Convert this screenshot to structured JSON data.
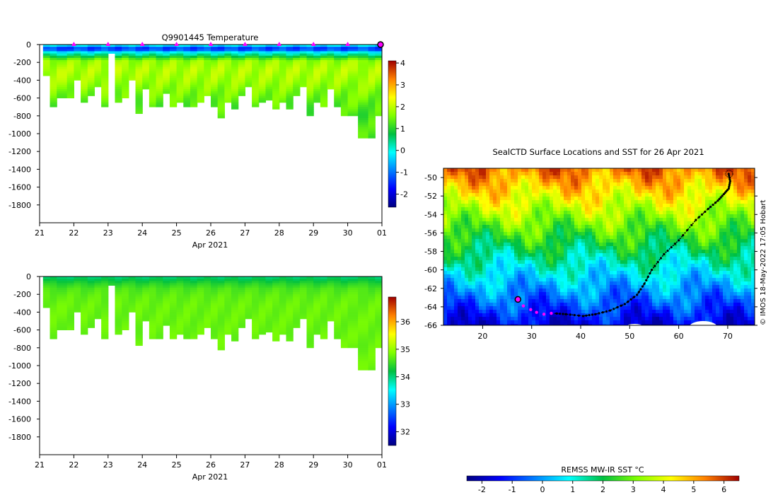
{
  "chart_data": [
    {
      "id": "temperature",
      "type": "heatmap",
      "title": "Q9901445  Temperature",
      "xlabel": "Apr 2021",
      "xticks": [
        "21",
        "22",
        "23",
        "24",
        "25",
        "26",
        "27",
        "28",
        "29",
        "30",
        "01"
      ],
      "xlim": [
        21,
        31
      ],
      "ylim": [
        -2000,
        0
      ],
      "yticks": [
        "0",
        "-200",
        "-400",
        "-600",
        "-800",
        "-1000",
        "-1200",
        "-1400",
        "-1600",
        "-1800"
      ],
      "colorbar": {
        "min": -2.6,
        "max": 4.1,
        "ticks": [
          "4",
          "3",
          "2",
          "1",
          "0",
          "-1",
          "-2"
        ]
      },
      "surface_marker_days": [
        22,
        23,
        24,
        25,
        26,
        27,
        28,
        29,
        30
      ],
      "last_profile_day": 31,
      "profile_days": [
        21.1,
        21.3,
        21.5,
        21.8,
        22.0,
        22.2,
        22.4,
        22.6,
        22.8,
        23.0,
        23.2,
        23.4,
        23.6,
        23.8,
        24.0,
        24.2,
        24.4,
        24.6,
        24.8,
        25.0,
        25.2,
        25.4,
        25.6,
        25.8,
        26.0,
        26.2,
        26.4,
        26.6,
        26.8,
        27.0,
        27.2,
        27.4,
        27.6,
        27.8,
        28.0,
        28.2,
        28.4,
        28.6,
        28.8,
        29.0,
        29.2,
        29.4,
        29.6,
        29.8,
        30.0,
        30.3,
        30.6,
        30.8,
        31.0
      ],
      "profile_max_depths": [
        350,
        690,
        600,
        600,
        400,
        630,
        560,
        470,
        680,
        100,
        650,
        580,
        380,
        760,
        500,
        700,
        700,
        550,
        680,
        650,
        700,
        680,
        640,
        570,
        690,
        820,
        650,
        720,
        560,
        470,
        680,
        630,
        610,
        720,
        640,
        720,
        560,
        470,
        800,
        640,
        700,
        500,
        700,
        800,
        800,
        1050,
        1050,
        800,
        800
      ],
      "layer_depths": [
        0,
        20,
        50,
        80,
        120,
        180,
        280,
        400,
        520,
        650,
        800,
        1100
      ],
      "layer_values": [
        0.2,
        -0.6,
        -1.8,
        -0.3,
        0.5,
        1.7,
        1.9,
        1.8,
        1.6,
        1.4,
        1.2,
        1.2
      ]
    },
    {
      "id": "salinity",
      "type": "heatmap",
      "title": "",
      "xlabel": "Apr 2021",
      "xticks": [
        "21",
        "22",
        "23",
        "24",
        "25",
        "26",
        "27",
        "28",
        "29",
        "30",
        "01"
      ],
      "xlim": [
        21,
        31
      ],
      "ylim": [
        -2000,
        0
      ],
      "yticks": [
        "0",
        "-200",
        "-400",
        "-600",
        "-800",
        "-1000",
        "-1200",
        "-1400",
        "-1600",
        "-1800"
      ],
      "colorbar": {
        "min": 31.5,
        "max": 36.9,
        "ticks": [
          "36",
          "35",
          "34",
          "33",
          "32"
        ]
      },
      "layer_depths": [
        0,
        40,
        80,
        140,
        220,
        320,
        1100
      ],
      "layer_values": [
        34.0,
        34.2,
        34.4,
        34.6,
        34.7,
        34.75,
        34.75
      ]
    },
    {
      "id": "map",
      "type": "map",
      "title": "SealCTD Surface Locations and SST for 26 Apr 2021",
      "xticks": [
        "20",
        "30",
        "40",
        "50",
        "60",
        "70"
      ],
      "xlim": [
        12,
        75.5
      ],
      "ylim": [
        -66,
        -49
      ],
      "yticks": [
        "-50",
        "-52",
        "-54",
        "-56",
        "-58",
        "-60",
        "-62",
        "-64",
        "-66"
      ],
      "colorbar_label": "REMSS MW-IR SST °C",
      "colorbar": {
        "min": -2.5,
        "max": 6.5,
        "ticks": [
          "-2",
          "-1",
          "0",
          "1",
          "2",
          "3",
          "4",
          "5",
          "6"
        ]
      },
      "track_lon_lat": [
        [
          70.2,
          -49.6
        ],
        [
          70.5,
          -50.4
        ],
        [
          70.2,
          -51.2
        ],
        [
          69.2,
          -51.8
        ],
        [
          68.0,
          -52.5
        ],
        [
          66.0,
          -53.4
        ],
        [
          63.5,
          -54.6
        ],
        [
          60.0,
          -56.8
        ],
        [
          57.0,
          -58.3
        ],
        [
          54.5,
          -60.0
        ],
        [
          53.0,
          -61.5
        ],
        [
          51.5,
          -62.7
        ],
        [
          49.0,
          -63.7
        ],
        [
          46.0,
          -64.4
        ],
        [
          43.0,
          -64.8
        ],
        [
          40.5,
          -65.0
        ],
        [
          37.0,
          -64.8
        ],
        [
          34.5,
          -64.7
        ]
      ],
      "recent_track_lon_lat": [
        [
          34.0,
          -64.7
        ],
        [
          32.5,
          -64.8
        ],
        [
          31.0,
          -64.6
        ],
        [
          29.8,
          -64.3
        ],
        [
          28.3,
          -63.9
        ],
        [
          27.2,
          -63.2
        ]
      ],
      "latest_position": [
        27.2,
        -63.2
      ]
    }
  ],
  "credit": "© IMOS 18-May-2022 17:05 Hobart",
  "colors": {
    "marker": "#ff00ff",
    "track": "#000000",
    "land": "#ffffff"
  }
}
